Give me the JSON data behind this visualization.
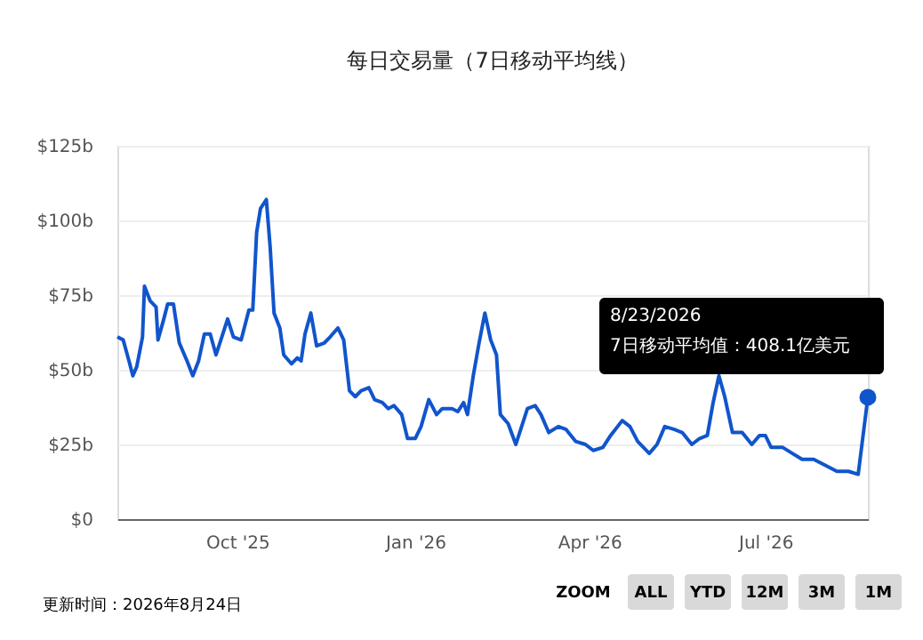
{
  "chart_data": {
    "type": "line",
    "title": "每日交易量（7日移动平均线）",
    "x": [
      "2025-07-31",
      "2025-08-03",
      "2025-08-06",
      "2025-08-08",
      "2025-08-10",
      "2025-08-13",
      "2025-08-14",
      "2025-08-17",
      "2025-08-20",
      "2025-08-21",
      "2025-08-24",
      "2025-08-26",
      "2025-08-29",
      "2025-09-01",
      "2025-09-05",
      "2025-09-08",
      "2025-09-11",
      "2025-09-14",
      "2025-09-17",
      "2025-09-20",
      "2025-09-23",
      "2025-09-26",
      "2025-09-29",
      "2025-10-03",
      "2025-10-07",
      "2025-10-09",
      "2025-10-11",
      "2025-10-13",
      "2025-10-16",
      "2025-10-18",
      "2025-10-20",
      "2025-10-23",
      "2025-10-25",
      "2025-10-29",
      "2025-11-01",
      "2025-11-03",
      "2025-11-05",
      "2025-11-08",
      "2025-11-11",
      "2025-11-15",
      "2025-11-18",
      "2025-11-22",
      "2025-11-25",
      "2025-11-28",
      "2025-12-01",
      "2025-12-04",
      "2025-12-08",
      "2025-12-11",
      "2025-12-15",
      "2025-12-18",
      "2025-12-21",
      "2025-12-25",
      "2025-12-28",
      "2026-01-01",
      "2026-01-04",
      "2026-01-08",
      "2026-01-12",
      "2026-01-15",
      "2026-01-20",
      "2026-01-23",
      "2026-01-26",
      "2026-01-28",
      "2026-01-31",
      "2026-02-03",
      "2026-02-06",
      "2026-02-09",
      "2026-02-12",
      "2026-02-14",
      "2026-02-18",
      "2026-02-22",
      "2026-02-25",
      "2026-02-28",
      "2026-03-04",
      "2026-03-07",
      "2026-03-11",
      "2026-03-16",
      "2026-03-20",
      "2026-03-25",
      "2026-03-30",
      "2026-04-03",
      "2026-04-08",
      "2026-04-12",
      "2026-04-18",
      "2026-04-22",
      "2026-04-26",
      "2026-05-02",
      "2026-05-06",
      "2026-05-10",
      "2026-05-15",
      "2026-05-19",
      "2026-05-24",
      "2026-05-28",
      "2026-06-01",
      "2026-06-04",
      "2026-06-07",
      "2026-06-10",
      "2026-06-14",
      "2026-06-19",
      "2026-06-24",
      "2026-06-28",
      "2026-07-01",
      "2026-07-04",
      "2026-07-10",
      "2026-07-15",
      "2026-07-20",
      "2026-07-26",
      "2026-08-01",
      "2026-08-07",
      "2026-08-13",
      "2026-08-18",
      "2026-08-23"
    ],
    "series": [
      {
        "color": "#1155cc",
        "values": [
          61,
          60,
          53,
          48,
          51,
          61,
          78,
          73,
          71,
          60,
          67,
          72,
          72,
          59,
          53,
          48,
          53,
          62,
          62,
          55,
          61,
          67,
          61,
          60,
          70,
          70,
          96,
          104,
          107,
          91,
          69,
          64,
          55,
          52,
          54,
          53,
          62,
          69,
          58,
          59,
          61,
          64,
          60,
          43,
          41,
          43,
          44,
          40,
          39,
          37,
          38,
          35,
          27,
          27,
          31,
          40,
          35,
          37,
          37,
          36,
          39,
          35,
          48,
          59,
          69,
          60,
          55,
          35,
          32,
          25,
          31,
          37,
          38,
          35,
          29,
          31,
          30,
          26,
          25,
          23,
          24,
          28,
          33,
          31,
          26,
          22,
          25,
          31,
          30,
          29,
          25,
          27,
          28,
          39,
          48,
          41,
          29,
          29,
          25,
          28,
          28,
          24,
          24,
          22,
          20,
          20,
          18,
          16,
          16,
          15,
          40.81
        ]
      }
    ],
    "xlim": [
      "2025-07-31",
      "2026-08-23"
    ],
    "xticks": [
      {
        "value": "2025-10-01",
        "label": "Oct '25"
      },
      {
        "value": "2026-01-01",
        "label": "Jan '26"
      },
      {
        "value": "2026-04-01",
        "label": "Apr '26"
      },
      {
        "value": "2026-07-01",
        "label": "Jul '26"
      }
    ],
    "ylim": [
      0,
      125
    ],
    "yticks": [
      {
        "value": 0,
        "label": "$0"
      },
      {
        "value": 25,
        "label": "$25b"
      },
      {
        "value": 50,
        "label": "$50b"
      },
      {
        "value": 75,
        "label": "$75b"
      },
      {
        "value": 100,
        "label": "$100b"
      },
      {
        "value": 125,
        "label": "$125b"
      }
    ],
    "grid": "y",
    "marker": "none",
    "line_style": "solid",
    "annotations": [
      "更新时间：2026年8月24日",
      "ZOOM",
      "ALL",
      "YTD",
      "12M",
      "3M",
      "1M",
      "8/23/2026",
      "7日移动平均值：408.1亿美元"
    ]
  }
}
